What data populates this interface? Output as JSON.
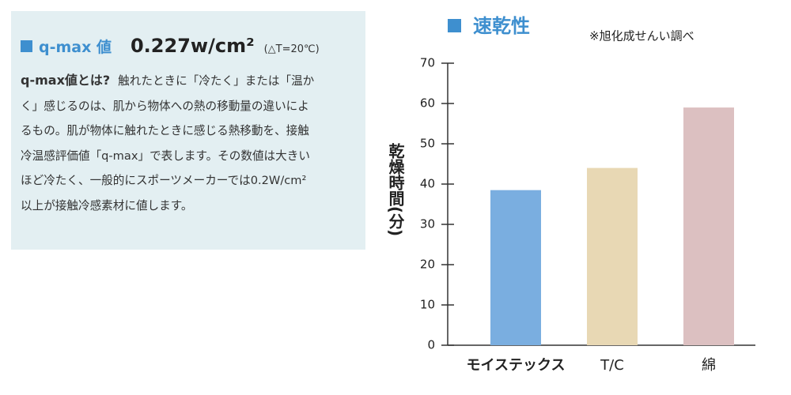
{
  "panel": {
    "heading": "q-max 値",
    "value": "0.227w/cm²",
    "condition": "(△T=20℃)",
    "lead": "q-max値とは?",
    "lines": [
      "触れたときに「冷たく」または「温か",
      "く」感じるのは、肌から物体への熱の移動量の違いによ",
      "るもの。肌が物体に触れたときに感じる熱移動を、接触",
      "冷温感評価値「q-max」で表します。その数値は大きい",
      "ほど冷たく、一般的にスポーツメーカーでは0.2W/cm²",
      "以上が接触冷感素材に値します。"
    ]
  },
  "chart_data": {
    "type": "bar",
    "title": "速乾性",
    "note": "※旭化成せんい調べ",
    "y_label": "乾燥時間(分)",
    "categories": [
      "モイステックス",
      "T/C",
      "綿"
    ],
    "values": [
      38.5,
      44,
      59
    ],
    "colors": [
      "#7aaee0",
      "#e8d8b4",
      "#dcc0c1"
    ],
    "ylim": [
      0,
      70
    ],
    "yticks": [
      0,
      10,
      20,
      30,
      40,
      50,
      60,
      70
    ]
  }
}
